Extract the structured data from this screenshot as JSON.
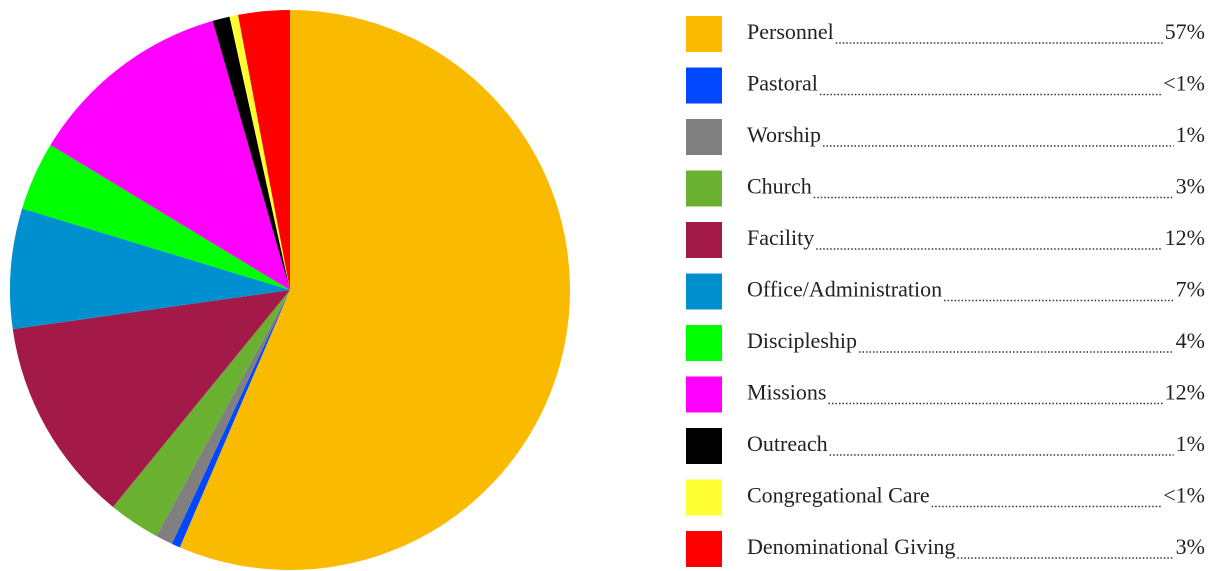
{
  "chart_data": {
    "type": "pie",
    "categories": [
      "Personnel",
      "Pastoral",
      "Worship",
      "Church",
      "Facility",
      "Office/Administration",
      "Discipleship",
      "Missions",
      "Outreach",
      "Congregational Care",
      "Denominational Giving"
    ],
    "values": [
      57,
      0.5,
      1,
      3,
      12,
      7,
      4,
      12,
      1,
      0.5,
      3
    ],
    "value_labels": [
      "57%",
      "<1%",
      "1%",
      "3%",
      "12%",
      "7%",
      "4%",
      "12%",
      "1%",
      "<1%",
      "3%"
    ],
    "colors": [
      "#F9BA00",
      "#0047FF",
      "#808080",
      "#6AB132",
      "#A31A48",
      "#0090D0",
      "#00FF00",
      "#FF00FF",
      "#000000",
      "#FFFF33",
      "#FF0000"
    ],
    "legend": "right"
  }
}
